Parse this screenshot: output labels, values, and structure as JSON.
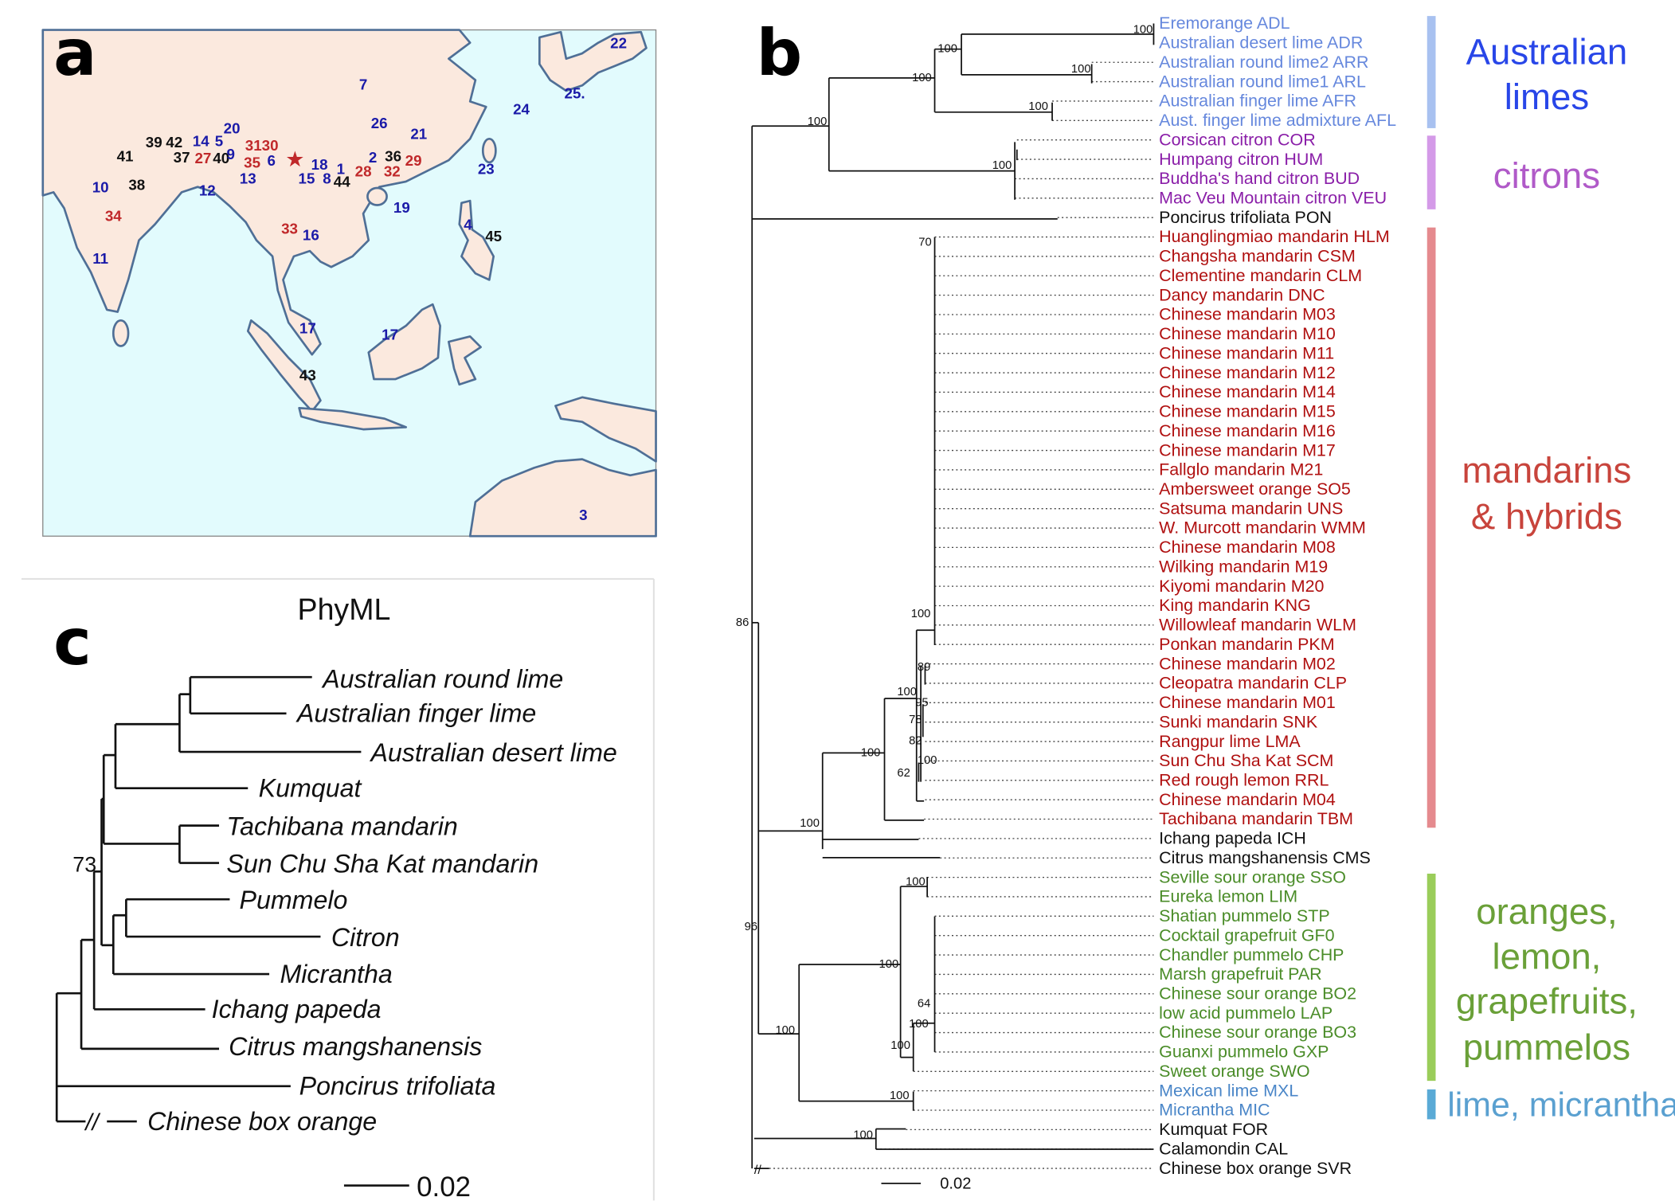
{
  "panels": {
    "a": "a",
    "b": "b",
    "c": "c"
  },
  "map": {
    "star_color": "#c0282a",
    "labels": [
      {
        "t": "22",
        "c": "#1a1aa8"
      },
      {
        "t": "7",
        "c": "#1a1aa8"
      },
      {
        "t": "25.",
        "c": "#1a1aa8"
      },
      {
        "t": "24",
        "c": "#1a1aa8"
      },
      {
        "t": "26",
        "c": "#1a1aa8"
      },
      {
        "t": "21",
        "c": "#1a1aa8"
      },
      {
        "t": "14",
        "c": "#1a1aa8"
      },
      {
        "t": "20",
        "c": "#1a1aa8"
      },
      {
        "t": "5",
        "c": "#1a1aa8"
      },
      {
        "t": "3130",
        "c": "#c0282a"
      },
      {
        "t": "39",
        "c": "#111111"
      },
      {
        "t": "42",
        "c": "#111111"
      },
      {
        "t": "41",
        "c": "#111111"
      },
      {
        "t": "37",
        "c": "#111111"
      },
      {
        "t": "27",
        "c": "#c0282a"
      },
      {
        "t": "40",
        "c": "#111111"
      },
      {
        "t": "9",
        "c": "#1a1aa8"
      },
      {
        "t": "35",
        "c": "#c0282a"
      },
      {
        "t": "6",
        "c": "#1a1aa8"
      },
      {
        "t": "18",
        "c": "#1a1aa8"
      },
      {
        "t": "2",
        "c": "#1a1aa8"
      },
      {
        "t": "36",
        "c": "#111111"
      },
      {
        "t": "29",
        "c": "#c0282a"
      },
      {
        "t": "1",
        "c": "#1a1aa8"
      },
      {
        "t": "28",
        "c": "#c0282a"
      },
      {
        "t": "32",
        "c": "#c0282a"
      },
      {
        "t": "23",
        "c": "#1a1aa8"
      },
      {
        "t": "15",
        "c": "#1a1aa8"
      },
      {
        "t": "8",
        "c": "#1a1aa8"
      },
      {
        "t": "44",
        "c": "#111111"
      },
      {
        "t": "13",
        "c": "#1a1aa8"
      },
      {
        "t": "10",
        "c": "#1a1aa8"
      },
      {
        "t": "38",
        "c": "#111111"
      },
      {
        "t": "12",
        "c": "#1a1aa8"
      },
      {
        "t": "19",
        "c": "#1a1aa8"
      },
      {
        "t": "34",
        "c": "#c0282a"
      },
      {
        "t": "4",
        "c": "#1a1aa8"
      },
      {
        "t": "45",
        "c": "#111111"
      },
      {
        "t": "33",
        "c": "#c0282a"
      },
      {
        "t": "16",
        "c": "#1a1aa8"
      },
      {
        "t": "11",
        "c": "#1a1aa8"
      },
      {
        "t": "17",
        "c": "#1a1aa8"
      },
      {
        "t": "17",
        "c": "#1a1aa8"
      },
      {
        "t": "43",
        "c": "#111111"
      },
      {
        "t": "3",
        "c": "#1a1aa8"
      }
    ]
  },
  "tree_b": {
    "leaves": [
      {
        "t": "Eremorange ADL",
        "c": "#6688dd"
      },
      {
        "t": "Australian desert lime ADR",
        "c": "#6688dd"
      },
      {
        "t": "Australian round lime2 ARR",
        "c": "#6688dd"
      },
      {
        "t": "Australian round lime1 ARL",
        "c": "#6688dd"
      },
      {
        "t": "Australian finger lime AFR",
        "c": "#6688dd"
      },
      {
        "t": "Aust. finger lime admixture AFL",
        "c": "#6688dd"
      },
      {
        "t": "Corsican citron COR",
        "c": "#8a1ea8"
      },
      {
        "t": "Humpang citron HUM",
        "c": "#8a1ea8"
      },
      {
        "t": "Buddha's hand citron BUD",
        "c": "#8a1ea8"
      },
      {
        "t": "Mac Veu Mountain citron VEU",
        "c": "#8a1ea8"
      },
      {
        "t": "Poncirus trifoliata PON",
        "c": "#111111"
      },
      {
        "t": "Huanglingmiao mandarin HLM",
        "c": "#b01010"
      },
      {
        "t": "Changsha mandarin CSM",
        "c": "#b01010"
      },
      {
        "t": "Clementine mandarin CLM",
        "c": "#b01010"
      },
      {
        "t": "Dancy mandarin DNC",
        "c": "#b01010"
      },
      {
        "t": "Chinese mandarin M03",
        "c": "#b01010"
      },
      {
        "t": "Chinese mandarin M10",
        "c": "#b01010"
      },
      {
        "t": "Chinese mandarin M11",
        "c": "#b01010"
      },
      {
        "t": "Chinese mandarin M12",
        "c": "#b01010"
      },
      {
        "t": "Chinese mandarin M14",
        "c": "#b01010"
      },
      {
        "t": "Chinese mandarin M15",
        "c": "#b01010"
      },
      {
        "t": "Chinese mandarin M16",
        "c": "#b01010"
      },
      {
        "t": "Chinese mandarin M17",
        "c": "#b01010"
      },
      {
        "t": "Fallglo mandarin M21",
        "c": "#b01010"
      },
      {
        "t": "Ambersweet orange SO5",
        "c": "#b01010"
      },
      {
        "t": "Satsuma mandarin UNS",
        "c": "#b01010"
      },
      {
        "t": "W. Murcott mandarin WMM",
        "c": "#b01010"
      },
      {
        "t": "Chinese mandarin M08",
        "c": "#b01010"
      },
      {
        "t": "Wilking mandarin M19",
        "c": "#b01010"
      },
      {
        "t": "Kiyomi mandarin M20",
        "c": "#b01010"
      },
      {
        "t": "King mandarin KNG",
        "c": "#b01010"
      },
      {
        "t": "Willowleaf mandarin WLM",
        "c": "#b01010"
      },
      {
        "t": "Ponkan mandarin PKM",
        "c": "#b01010"
      },
      {
        "t": "Chinese mandarin M02",
        "c": "#b01010"
      },
      {
        "t": "Cleopatra mandarin CLP",
        "c": "#b01010"
      },
      {
        "t": "Chinese mandarin M01",
        "c": "#b01010"
      },
      {
        "t": "Sunki mandarin SNK",
        "c": "#b01010"
      },
      {
        "t": "Rangpur lime LMA",
        "c": "#b01010"
      },
      {
        "t": "Sun Chu Sha Kat SCM",
        "c": "#b01010"
      },
      {
        "t": "Red rough lemon RRL",
        "c": "#b01010"
      },
      {
        "t": "Chinese mandarin M04",
        "c": "#b01010"
      },
      {
        "t": "Tachibana mandarin TBM",
        "c": "#b01010"
      },
      {
        "t": "Ichang papeda ICH",
        "c": "#111111"
      },
      {
        "t": "Citrus mangshanensis CMS",
        "c": "#111111"
      },
      {
        "t": "Seville sour orange SSO",
        "c": "#4a8c28"
      },
      {
        "t": "Eureka lemon LIM",
        "c": "#4a8c28"
      },
      {
        "t": "Shatian pummelo STP",
        "c": "#4a8c28"
      },
      {
        "t": "Cocktail grapefruit GF0",
        "c": "#4a8c28"
      },
      {
        "t": "Chandler pummelo CHP",
        "c": "#4a8c28"
      },
      {
        "t": "Marsh grapefruit PAR",
        "c": "#4a8c28"
      },
      {
        "t": "Chinese sour orange BO2",
        "c": "#4a8c28"
      },
      {
        "t": "low acid pummelo LAP",
        "c": "#4a8c28"
      },
      {
        "t": "Chinese sour orange BO3",
        "c": "#4a8c28"
      },
      {
        "t": "Guanxi pummelo GXP",
        "c": "#4a8c28"
      },
      {
        "t": "Sweet orange SWO",
        "c": "#4a8c28"
      },
      {
        "t": "Mexican lime MXL",
        "c": "#4a86c8"
      },
      {
        "t": "Micrantha MIC",
        "c": "#4a86c8"
      },
      {
        "t": "Kumquat FOR",
        "c": "#111111"
      },
      {
        "t": "Calamondin CAL",
        "c": "#111111"
      },
      {
        "t": "Chinese box orange SVR",
        "c": "#111111"
      }
    ],
    "bootstrap": [
      "100",
      "100",
      "100",
      "100",
      "100",
      "100",
      "100",
      "70",
      "86",
      "100",
      "89",
      "100",
      "95",
      "78",
      "82",
      "100",
      "62",
      "100",
      "100",
      "100",
      "96",
      "100",
      "64",
      "100",
      "100",
      "100",
      "100",
      "100"
    ],
    "groups": [
      {
        "lines": [
          "Australian",
          "limes"
        ],
        "text_color": "#2846e8",
        "bar_color": "#a8c1f0"
      },
      {
        "lines": [
          "citrons"
        ],
        "text_color": "#b05ac8",
        "bar_color": "#d49ae8"
      },
      {
        "lines": [
          "mandarins",
          "& hybrids"
        ],
        "text_color": "#c8443c",
        "bar_color": "#e58a8e"
      },
      {
        "lines": [
          "oranges,",
          "lemon,",
          "grapefruits,",
          "pummelos"
        ],
        "text_color": "#6aa038",
        "bar_color": "#9acd5a"
      },
      {
        "lines": [
          "lime, micrantha"
        ],
        "text_color": "#5aa0d0",
        "bar_color": "#5aaad6"
      }
    ],
    "scale_label": "0.02",
    "break_mark": "//"
  },
  "tree_c": {
    "title": "PhyML",
    "leaves": [
      "Australian round lime",
      "Australian finger lime",
      "Australian desert lime",
      "Kumquat",
      "Tachibana mandarin",
      "Sun Chu Sha Kat mandarin",
      "Pummelo",
      "Citron",
      "Micrantha",
      "Ichang papeda",
      "Citrus mangshanensis",
      "Poncirus trifoliata",
      "Chinese box orange"
    ],
    "support": "73",
    "break_mark": "//",
    "scale_label": "0.02"
  }
}
